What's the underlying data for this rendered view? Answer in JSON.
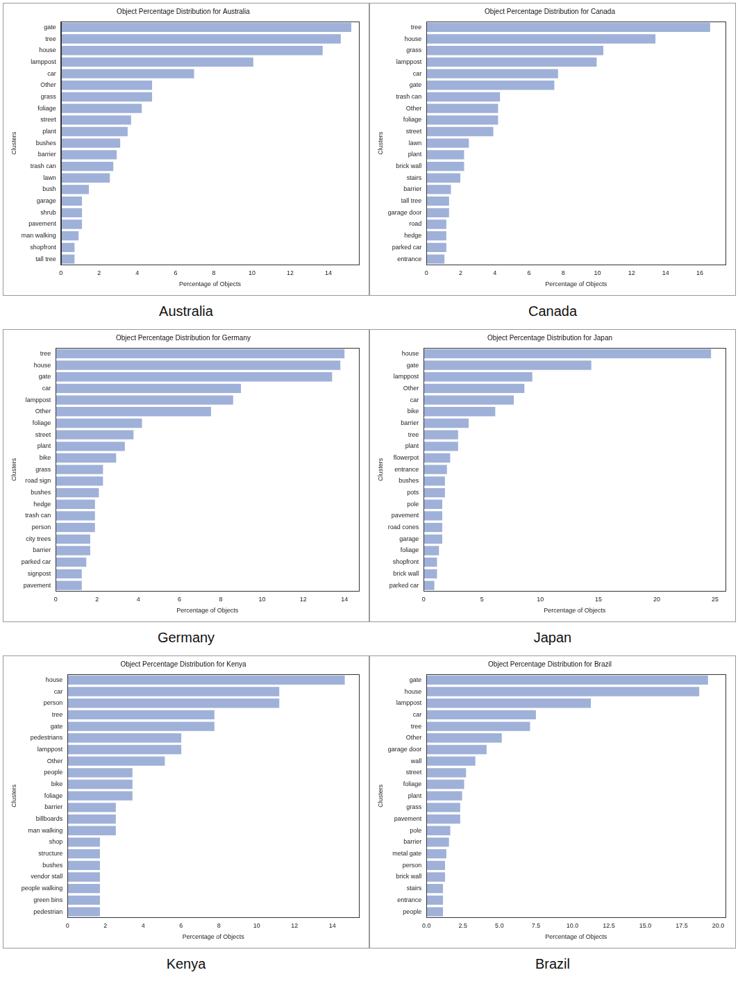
{
  "chart_data": [
    {
      "type": "bar",
      "orientation": "horizontal",
      "grid": false,
      "color": "#9fb1d8",
      "title": "Object Percentage Distribution for Australia",
      "caption": "Australia",
      "x_label": "Percentage of Objects",
      "y_label": "Clusters",
      "categories": [
        "gate",
        "tree",
        "house",
        "lamppost",
        "car",
        "Other",
        "grass",
        "foliage",
        "street",
        "plant",
        "bushes",
        "barrier",
        "trash can",
        "lawn",
        "bush",
        "garage",
        "shrub",
        "pavement",
        "man walking",
        "shopfront",
        "tall tree"
      ],
      "values": [
        15.2,
        14.65,
        13.7,
        10.07,
        6.97,
        4.77,
        4.77,
        4.23,
        3.67,
        3.49,
        3.1,
        2.92,
        2.74,
        2.56,
        1.46,
        1.1,
        1.1,
        1.1,
        0.92,
        0.71,
        0.71
      ],
      "xlim": [
        0,
        15.6
      ],
      "xticks": [
        0,
        2,
        4,
        6,
        8,
        10,
        12,
        14
      ]
    },
    {
      "type": "bar",
      "orientation": "horizontal",
      "grid": false,
      "color": "#9fb1d8",
      "title": "Object Percentage Distribution for Canada",
      "caption": "Canada",
      "x_label": "Percentage of Objects",
      "y_label": "Clusters",
      "categories": [
        "tree",
        "house",
        "grass",
        "lamppost",
        "car",
        "gate",
        "trash can",
        "Other",
        "foliage",
        "street",
        "lawn",
        "plant",
        "brick wall",
        "stairs",
        "barrier",
        "tall tree",
        "garage door",
        "road",
        "hedge",
        "parked car",
        "entrance"
      ],
      "values": [
        16.6,
        13.4,
        10.35,
        9.96,
        7.7,
        7.48,
        4.3,
        4.19,
        4.19,
        3.91,
        2.48,
        2.2,
        2.2,
        1.98,
        1.43,
        1.32,
        1.32,
        1.16,
        1.16,
        1.16,
        1.05
      ],
      "xlim": [
        0,
        17.5
      ],
      "xticks": [
        0,
        2,
        4,
        6,
        8,
        10,
        12,
        14,
        16
      ]
    },
    {
      "type": "bar",
      "orientation": "horizontal",
      "grid": false,
      "color": "#9fb1d8",
      "title": "Object Percentage Distribution for Germany",
      "caption": "Germany",
      "x_label": "Percentage of Objects",
      "y_label": "Clusters",
      "categories": [
        "tree",
        "house",
        "gate",
        "car",
        "lamppost",
        "Other",
        "foliage",
        "street",
        "plant",
        "bike",
        "grass",
        "road sign",
        "bushes",
        "hedge",
        "trash can",
        "person",
        "city trees",
        "barrier",
        "parked car",
        "signpost",
        "pavement"
      ],
      "values": [
        14.0,
        13.8,
        13.4,
        8.98,
        8.6,
        7.53,
        4.18,
        3.77,
        3.35,
        2.93,
        2.29,
        2.29,
        2.09,
        1.9,
        1.9,
        1.9,
        1.67,
        1.67,
        1.48,
        1.26,
        1.26
      ],
      "xlim": [
        0,
        14.7
      ],
      "xticks": [
        0,
        2,
        4,
        6,
        8,
        10,
        12,
        14
      ]
    },
    {
      "type": "bar",
      "orientation": "horizontal",
      "grid": false,
      "color": "#9fb1d8",
      "title": "Object Percentage Distribution for Japan",
      "caption": "Japan",
      "x_label": "Percentage of Objects",
      "y_label": "Clusters",
      "categories": [
        "house",
        "gate",
        "lamppost",
        "Other",
        "car",
        "bike",
        "barrier",
        "tree",
        "plant",
        "flowerpot",
        "entrance",
        "bushes",
        "pots",
        "pole",
        "pavement",
        "road cones",
        "garage",
        "foliage",
        "shopfront",
        "brick wall",
        "parked car"
      ],
      "values": [
        24.66,
        14.38,
        9.32,
        8.64,
        7.73,
        6.14,
        3.86,
        2.95,
        2.95,
        2.27,
        1.99,
        1.82,
        1.82,
        1.59,
        1.59,
        1.59,
        1.59,
        1.31,
        1.14,
        1.14,
        0.91
      ],
      "xlim": [
        0,
        25.9
      ],
      "xticks": [
        0,
        5,
        10,
        15,
        20,
        25
      ]
    },
    {
      "type": "bar",
      "orientation": "horizontal",
      "grid": false,
      "color": "#9fb1d8",
      "title": "Object Percentage Distribution for Kenya",
      "caption": "Kenya",
      "x_label": "Percentage of Objects",
      "y_label": "Clusters",
      "categories": [
        "house",
        "car",
        "person",
        "tree",
        "gate",
        "pedestrians",
        "lamppost",
        "Other",
        "people",
        "bike",
        "foliage",
        "barrier",
        "billboards",
        "man walking",
        "shop",
        "structure",
        "bushes",
        "vendor stall",
        "people walking",
        "green bins",
        "pedestrian"
      ],
      "values": [
        14.65,
        11.19,
        11.19,
        7.76,
        7.76,
        6.01,
        6.01,
        5.14,
        3.43,
        3.43,
        3.43,
        2.55,
        2.55,
        2.55,
        1.71,
        1.71,
        1.71,
        1.71,
        1.71,
        1.71,
        1.71
      ],
      "xlim": [
        0,
        15.4
      ],
      "xticks": [
        0,
        2,
        4,
        6,
        8,
        10,
        12,
        14
      ]
    },
    {
      "type": "bar",
      "orientation": "horizontal",
      "grid": false,
      "color": "#9fb1d8",
      "title": "Object Percentage Distribution for Brazil",
      "caption": "Brazil",
      "x_label": "Percentage of Objects",
      "y_label": "Clusters",
      "categories": [
        "gate",
        "house",
        "lamppost",
        "car",
        "tree",
        "Other",
        "garage door",
        "wall",
        "street",
        "foliage",
        "plant",
        "grass",
        "pavement",
        "pole",
        "barrier",
        "metal gate",
        "person",
        "brick wall",
        "stairs",
        "entrance",
        "people"
      ],
      "values": [
        19.3,
        18.7,
        11.27,
        7.5,
        7.1,
        5.16,
        4.12,
        3.35,
        2.71,
        2.58,
        2.44,
        2.31,
        2.31,
        1.63,
        1.54,
        1.36,
        1.27,
        1.27,
        1.13,
        1.13,
        1.13
      ],
      "xlim": [
        0,
        20.5
      ],
      "xticks": [
        {
          "value": 0,
          "label": "0.0"
        },
        {
          "value": 2.5,
          "label": "2.5"
        },
        {
          "value": 5,
          "label": "5.0"
        },
        {
          "value": 7.5,
          "label": "7.5"
        },
        {
          "value": 10,
          "label": "10.0"
        },
        {
          "value": 12.5,
          "label": "12.5"
        },
        {
          "value": 15,
          "label": "15.0"
        },
        {
          "value": 17.5,
          "label": "17.5"
        },
        {
          "value": 20,
          "label": "20.0"
        }
      ]
    }
  ]
}
